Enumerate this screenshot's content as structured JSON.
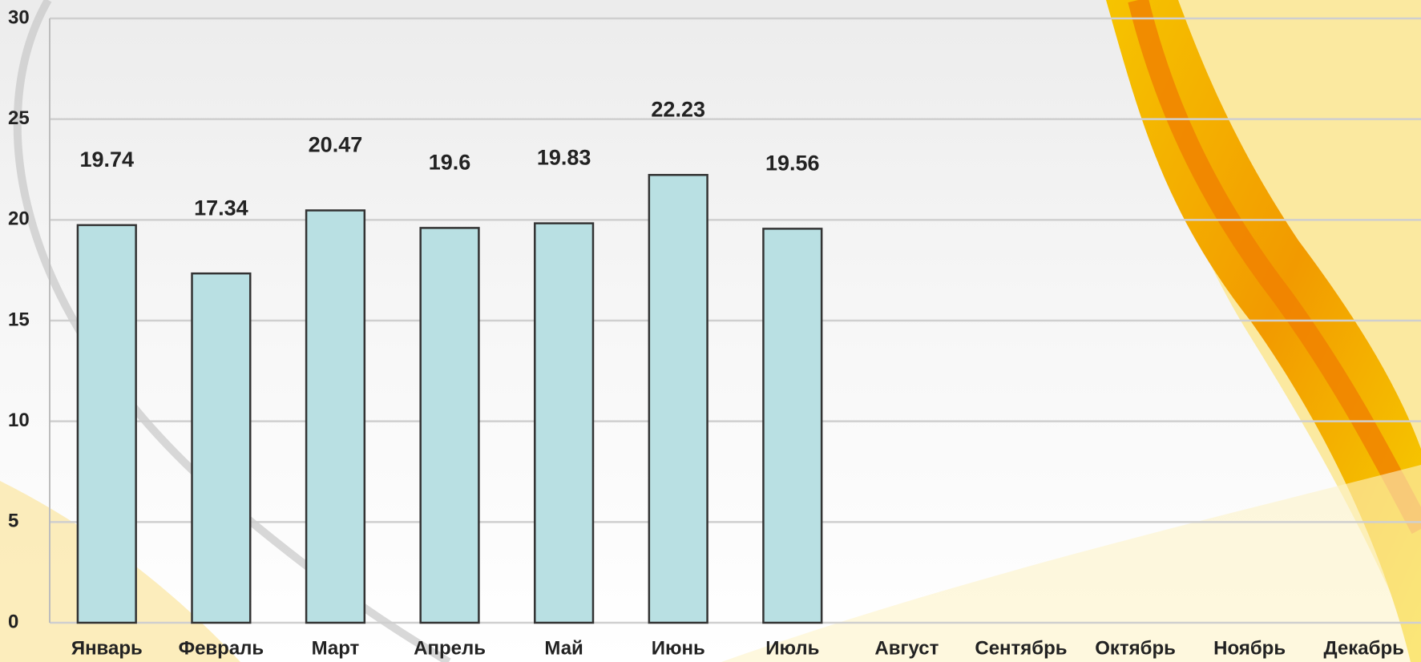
{
  "chart_data": {
    "type": "bar",
    "categories": [
      "Январь",
      "Февраль",
      "Март",
      "Апрель",
      "Май",
      "Июнь",
      "Июль",
      "Август",
      "Сентябрь",
      "Октябрь",
      "Ноябрь",
      "Декабрь"
    ],
    "values": [
      19.74,
      17.34,
      20.47,
      19.6,
      19.83,
      22.23,
      19.56,
      null,
      null,
      null,
      null,
      null
    ],
    "color": "#b9e0e3",
    "ylim": [
      0,
      30
    ],
    "yticks": [
      0,
      5,
      10,
      15,
      20,
      25,
      30
    ],
    "grid": true
  }
}
